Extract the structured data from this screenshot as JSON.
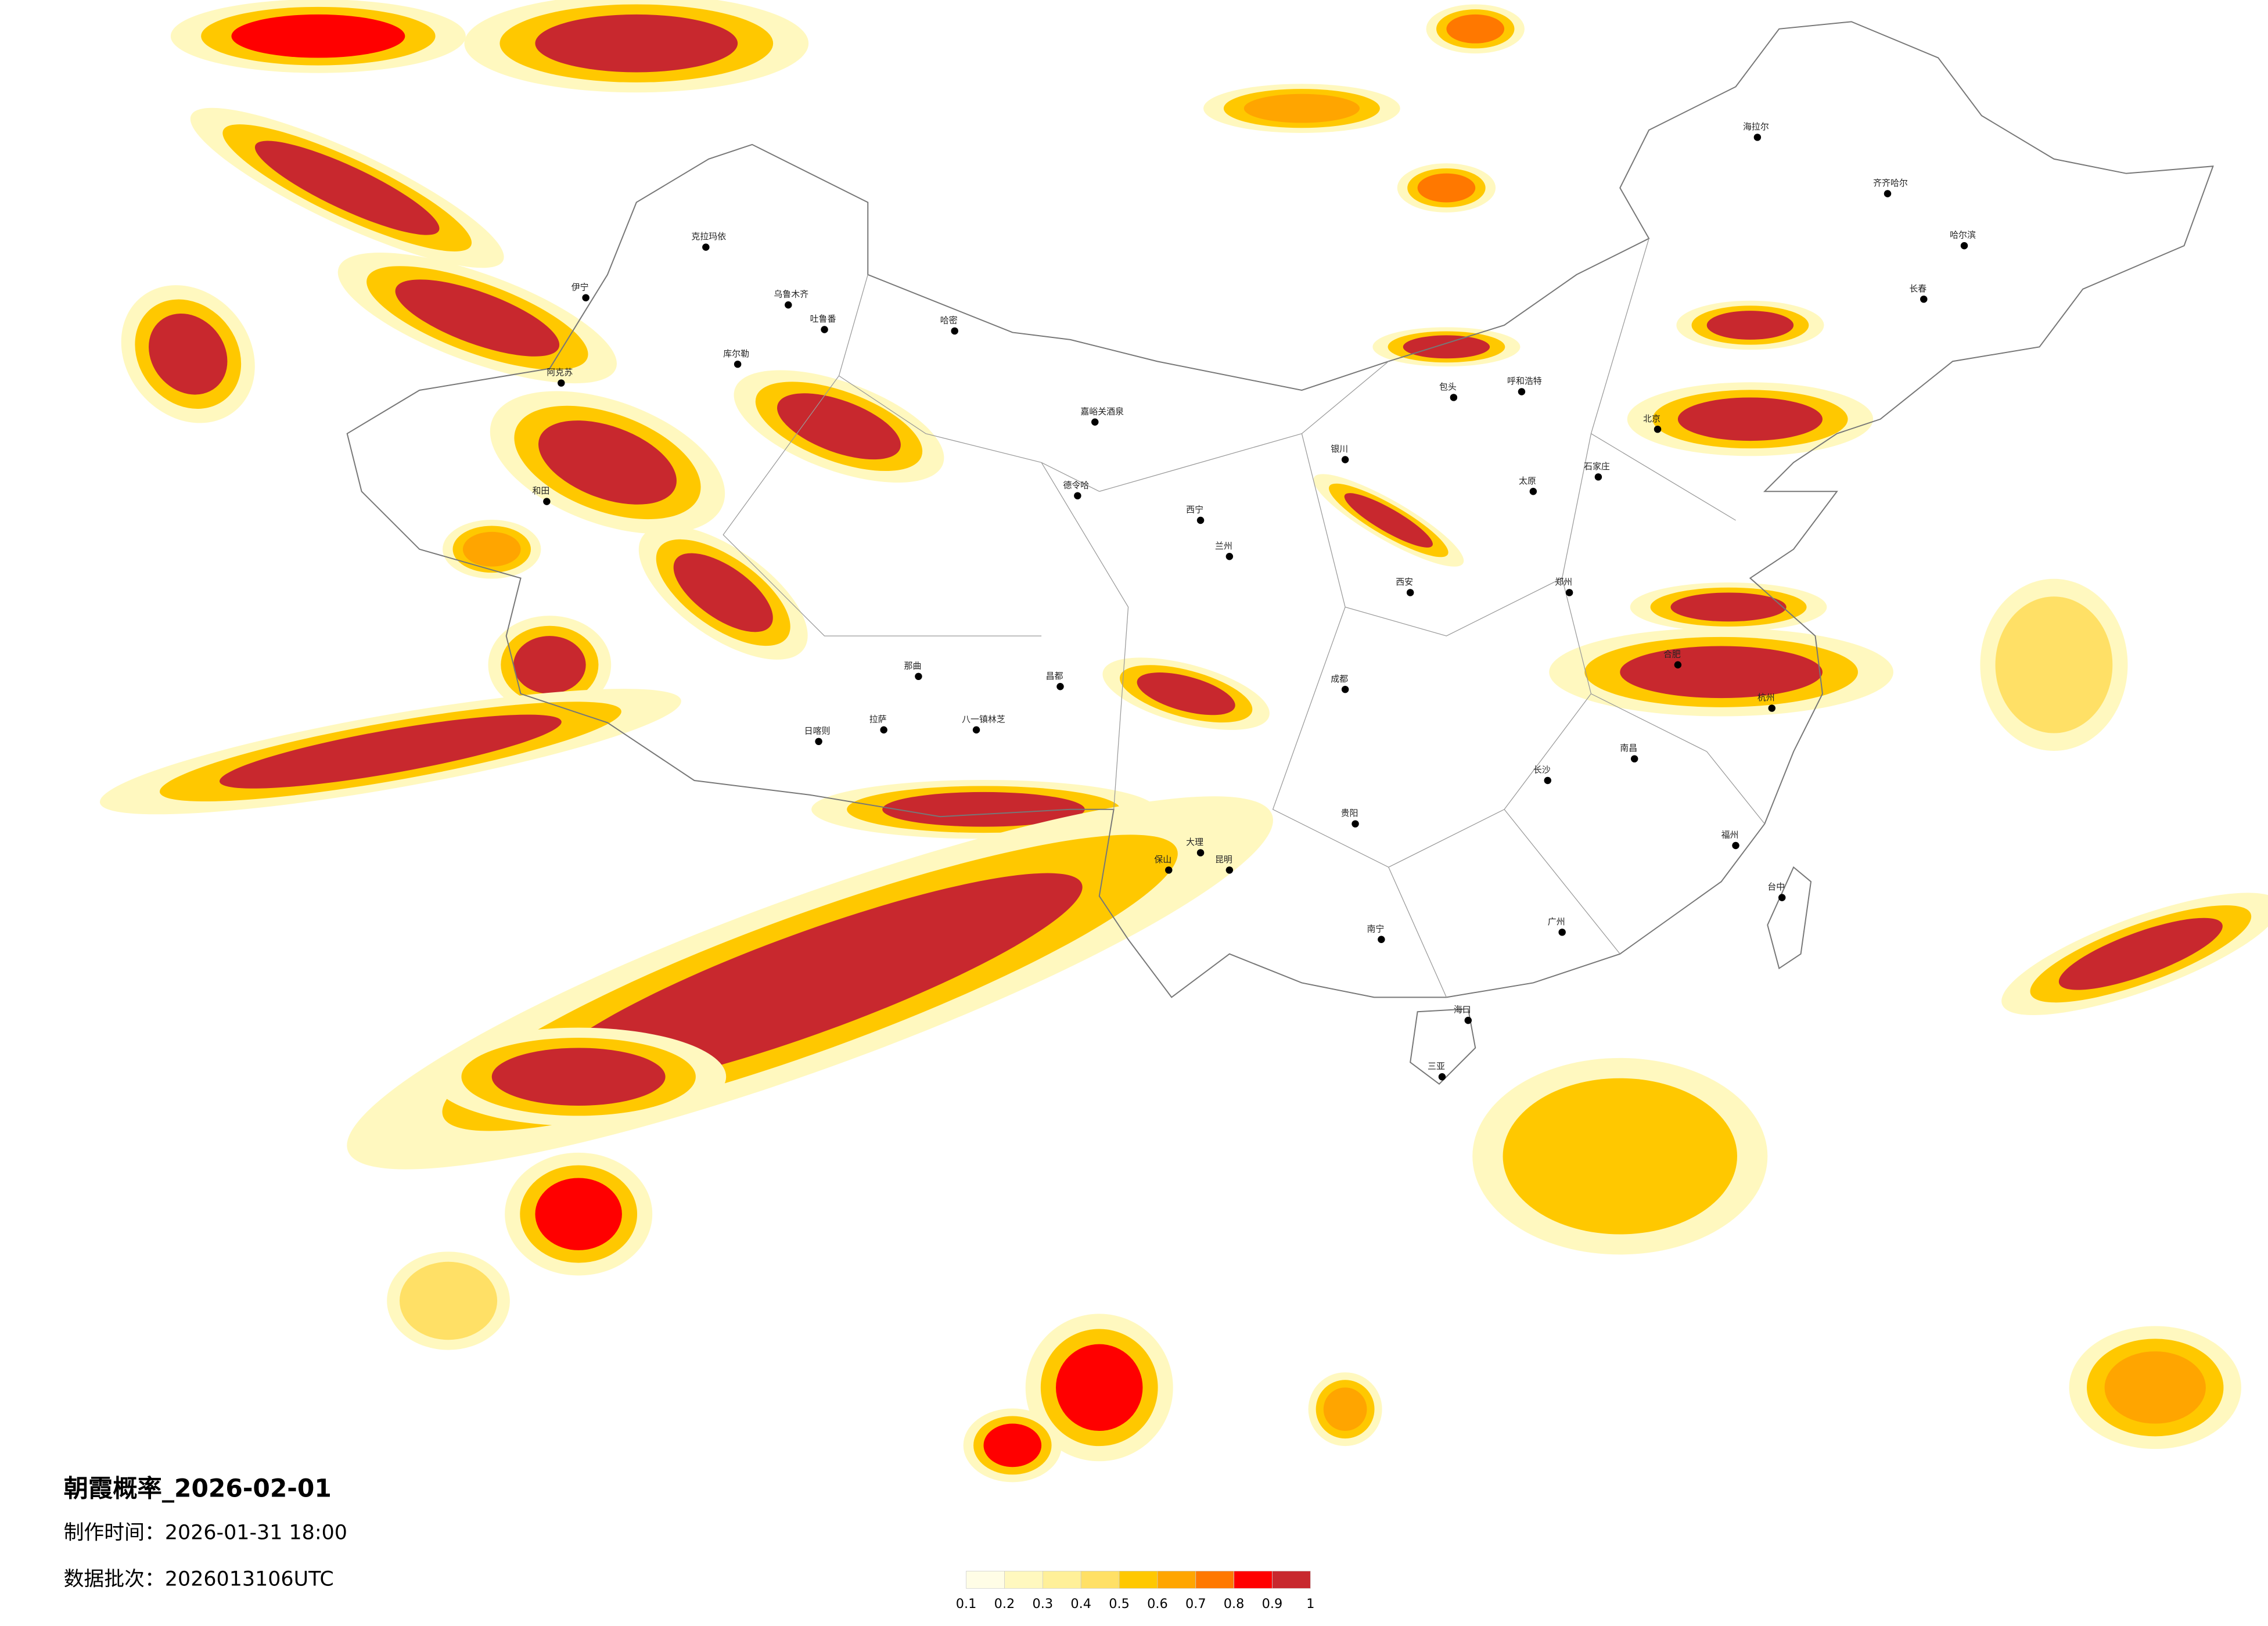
{
  "title": "朝霞概率_2026-02-01",
  "made_time": "制作时间：2026-01-31 18:00",
  "batch": "数据批次：2026013106UTC",
  "legend": {
    "ticks": [
      0.1,
      0.2,
      0.3,
      0.4,
      0.5,
      0.6,
      0.7,
      0.8,
      0.9,
      1
    ],
    "colors": [
      "#fffde6",
      "#fff8bf",
      "#fff099",
      "#ffe066",
      "#ffc800",
      "#ffa500",
      "#ff7800",
      "#ff0000",
      "#c8282e"
    ]
  },
  "cities": [
    "克拉玛依",
    "乌鲁木齐",
    "吐鲁番",
    "哈密",
    "库尔勒",
    "阿克苏",
    "和田",
    "伊宁",
    "嘉峪关酒泉",
    "德令哈",
    "日喀则",
    "拉萨",
    "八一镇林芝",
    "那曲",
    "昌都",
    "呼和浩特",
    "包头",
    "北京",
    "哈尔滨",
    "长春",
    "齐齐哈尔",
    "海拉尔",
    "成都",
    "贵阳",
    "昆明",
    "南宁",
    "广州",
    "长沙",
    "南昌",
    "杭州",
    "福州",
    "台中",
    "海口",
    "三亚",
    "兰州",
    "西安",
    "太原",
    "石家庄",
    "郑州",
    "合肥",
    "大理",
    "保山",
    "银川",
    "西宁"
  ]
}
